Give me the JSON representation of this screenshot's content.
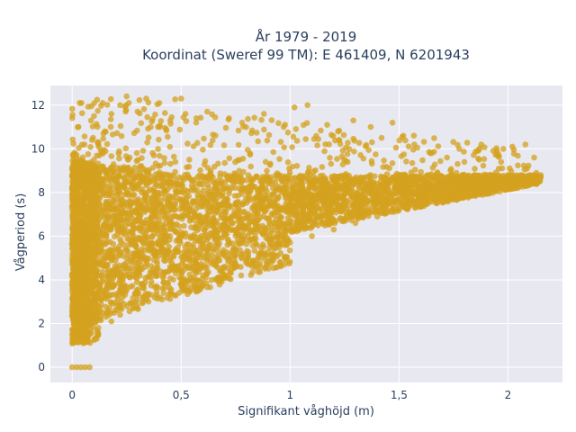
{
  "chart_data": {
    "type": "scatter",
    "title_line1": "År 1979 - 2019",
    "title_line2": "Koordinat (Sweref 99 TM): E 461409, N 6201943",
    "xlabel": "Signifikant våghöjd (m)",
    "ylabel": "Vågperiod (s)",
    "xlim": [
      -0.1,
      2.25
    ],
    "ylim": [
      -0.7,
      12.9
    ],
    "x_ticks": [
      0,
      0.5,
      1,
      1.5,
      2
    ],
    "x_tick_labels": [
      "0",
      "0,5",
      "1",
      "1,5",
      "2"
    ],
    "y_ticks": [
      0,
      2,
      4,
      6,
      8,
      10,
      12
    ],
    "y_tick_labels": [
      "0",
      "2",
      "4",
      "6",
      "8",
      "10",
      "12"
    ],
    "grid": true,
    "marker_color": "#D4A21F",
    "plot_background": "#E8E8F0",
    "points": [
      [
        0.0,
        0.0
      ],
      [
        0.02,
        0.0
      ],
      [
        0.04,
        0.0
      ],
      [
        0.06,
        0.0
      ],
      [
        0.08,
        0.0
      ],
      [
        0.01,
        1.2
      ],
      [
        0.03,
        1.5
      ],
      [
        0.05,
        1.1
      ],
      [
        0.02,
        1.7
      ],
      [
        0.07,
        1.3
      ],
      [
        0.04,
        2.5
      ],
      [
        0.06,
        3.5
      ],
      [
        0.03,
        4.5
      ],
      [
        0.05,
        6.0
      ],
      [
        0.02,
        7.5
      ],
      [
        0.08,
        8.5
      ],
      [
        0.06,
        9.2
      ],
      [
        0.1,
        9.5
      ],
      [
        0.12,
        10.2
      ],
      [
        0.15,
        10.8
      ],
      [
        0.1,
        11.5
      ],
      [
        0.14,
        12.1
      ],
      [
        0.18,
        11.6
      ],
      [
        0.22,
        12.0
      ],
      [
        0.25,
        12.4
      ],
      [
        0.3,
        11.7
      ],
      [
        0.34,
        12.3
      ],
      [
        0.4,
        12.1
      ],
      [
        0.45,
        11.3
      ],
      [
        0.5,
        12.3
      ],
      [
        0.52,
        11.6
      ],
      [
        0.57,
        11.4
      ],
      [
        0.62,
        11.7
      ],
      [
        0.72,
        11.4
      ],
      [
        0.78,
        11.2
      ],
      [
        0.88,
        11.6
      ],
      [
        0.97,
        11.0
      ],
      [
        1.02,
        11.9
      ],
      [
        1.08,
        12.0
      ],
      [
        1.17,
        11.1
      ],
      [
        1.22,
        10.8
      ],
      [
        1.29,
        11.3
      ],
      [
        1.37,
        11.0
      ],
      [
        1.42,
        10.5
      ],
      [
        1.47,
        11.2
      ],
      [
        1.52,
        10.6
      ],
      [
        1.57,
        10.2
      ],
      [
        1.65,
        9.8
      ],
      [
        1.72,
        9.6
      ],
      [
        1.8,
        9.4
      ],
      [
        1.86,
        9.9
      ],
      [
        1.95,
        9.7
      ],
      [
        2.02,
        10.1
      ],
      [
        2.08,
        10.2
      ],
      [
        2.12,
        9.6
      ],
      [
        0.12,
        1.8
      ],
      [
        0.18,
        2.1
      ],
      [
        0.22,
        2.4
      ],
      [
        0.28,
        2.7
      ],
      [
        0.35,
        3.0
      ],
      [
        0.42,
        3.4
      ],
      [
        0.5,
        3.8
      ],
      [
        0.6,
        4.2
      ],
      [
        0.7,
        4.6
      ],
      [
        0.8,
        5.0
      ],
      [
        0.9,
        5.3
      ],
      [
        1.0,
        5.7
      ],
      [
        1.1,
        6.0
      ],
      [
        1.2,
        6.3
      ],
      [
        1.3,
        6.6
      ],
      [
        1.4,
        6.9
      ],
      [
        1.5,
        7.2
      ],
      [
        1.6,
        7.4
      ],
      [
        1.7,
        7.6
      ],
      [
        1.8,
        7.8
      ],
      [
        1.9,
        8.0
      ],
      [
        2.0,
        8.2
      ],
      [
        2.1,
        8.4
      ],
      [
        2.15,
        8.7
      ],
      [
        2.13,
        8.9
      ],
      [
        0.2,
        7.0
      ],
      [
        0.4,
        7.5
      ],
      [
        0.6,
        7.8
      ],
      [
        0.8,
        8.2
      ],
      [
        1.0,
        8.5
      ],
      [
        1.2,
        8.3
      ],
      [
        1.4,
        8.4
      ],
      [
        1.6,
        8.6
      ],
      [
        1.8,
        8.7
      ],
      [
        2.0,
        8.8
      ],
      [
        0.25,
        5.0
      ],
      [
        0.45,
        6.0
      ],
      [
        0.65,
        6.5
      ],
      [
        0.85,
        7.0
      ],
      [
        1.05,
        7.2
      ],
      [
        1.25,
        7.4
      ],
      [
        1.45,
        7.7
      ],
      [
        1.65,
        8.0
      ],
      [
        1.85,
        8.3
      ],
      [
        2.05,
        8.6
      ]
    ]
  }
}
